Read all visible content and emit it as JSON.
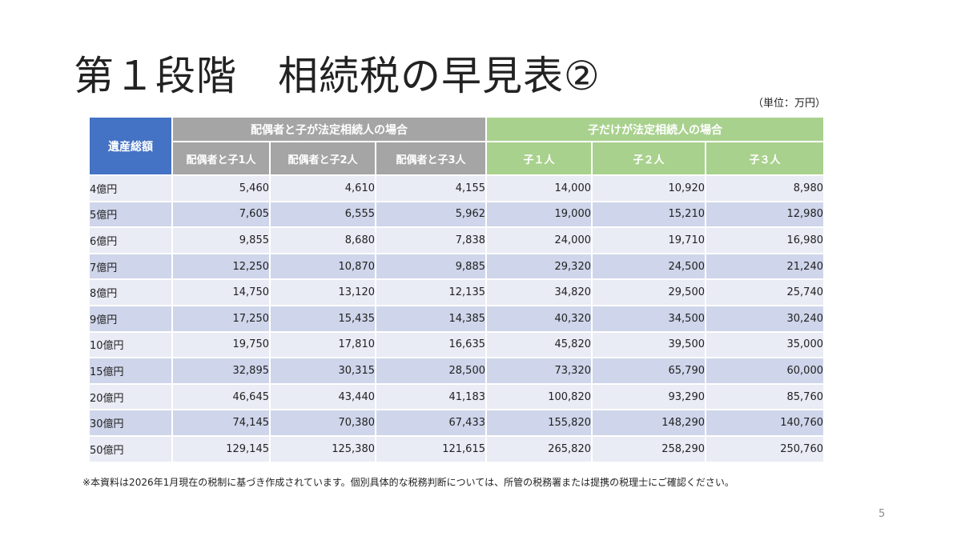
{
  "title": "第１段階　相続税の早見表②",
  "unit": "（単位：万円）",
  "table": {
    "corner_header": "遺産総額",
    "group_headers": {
      "spouse": "配偶者と子が法定相続人の場合",
      "children": "子だけが法定相続人の場合"
    },
    "sub_headers": [
      "配偶者と子1人",
      "配偶者と子2人",
      "配偶者と子3人",
      "子１人",
      "子２人",
      "子３人"
    ],
    "rows": [
      {
        "label": "4億円",
        "values": [
          "5,460",
          "4,610",
          "4,155",
          "14,000",
          "10,920",
          "8,980"
        ]
      },
      {
        "label": "5億円",
        "values": [
          "7,605",
          "6,555",
          "5,962",
          "19,000",
          "15,210",
          "12,980"
        ]
      },
      {
        "label": "6億円",
        "values": [
          "9,855",
          "8,680",
          "7,838",
          "24,000",
          "19,710",
          "16,980"
        ]
      },
      {
        "label": "7億円",
        "values": [
          "12,250",
          "10,870",
          "9,885",
          "29,320",
          "24,500",
          "21,240"
        ]
      },
      {
        "label": "8億円",
        "values": [
          "14,750",
          "13,120",
          "12,135",
          "34,820",
          "29,500",
          "25,740"
        ]
      },
      {
        "label": "9億円",
        "values": [
          "17,250",
          "15,435",
          "14,385",
          "40,320",
          "34,500",
          "30,240"
        ]
      },
      {
        "label": "10億円",
        "values": [
          "19,750",
          "17,810",
          "16,635",
          "45,820",
          "39,500",
          "35,000"
        ]
      },
      {
        "label": "15億円",
        "values": [
          "32,895",
          "30,315",
          "28,500",
          "73,320",
          "65,790",
          "60,000"
        ]
      },
      {
        "label": "20億円",
        "values": [
          "46,645",
          "43,440",
          "41,183",
          "100,820",
          "93,290",
          "85,760"
        ]
      },
      {
        "label": "30億円",
        "values": [
          "74,145",
          "70,380",
          "67,433",
          "155,820",
          "148,290",
          "140,760"
        ]
      },
      {
        "label": "50億円",
        "values": [
          "129,145",
          "125,380",
          "121,615",
          "265,820",
          "258,290",
          "250,760"
        ]
      }
    ]
  },
  "note": "※本資料は2026年1月現在の税制に基づき作成されています。個別具体的な税務判断については、所管の税務署または提携の税理士にご確認ください。",
  "page_number": "5",
  "colors": {
    "corner": "#4472c4",
    "spouse_header": "#a5a5a5",
    "children_header": "#a9d18e",
    "row_light": "#e9ebf5",
    "row_dark": "#cfd5ea"
  }
}
